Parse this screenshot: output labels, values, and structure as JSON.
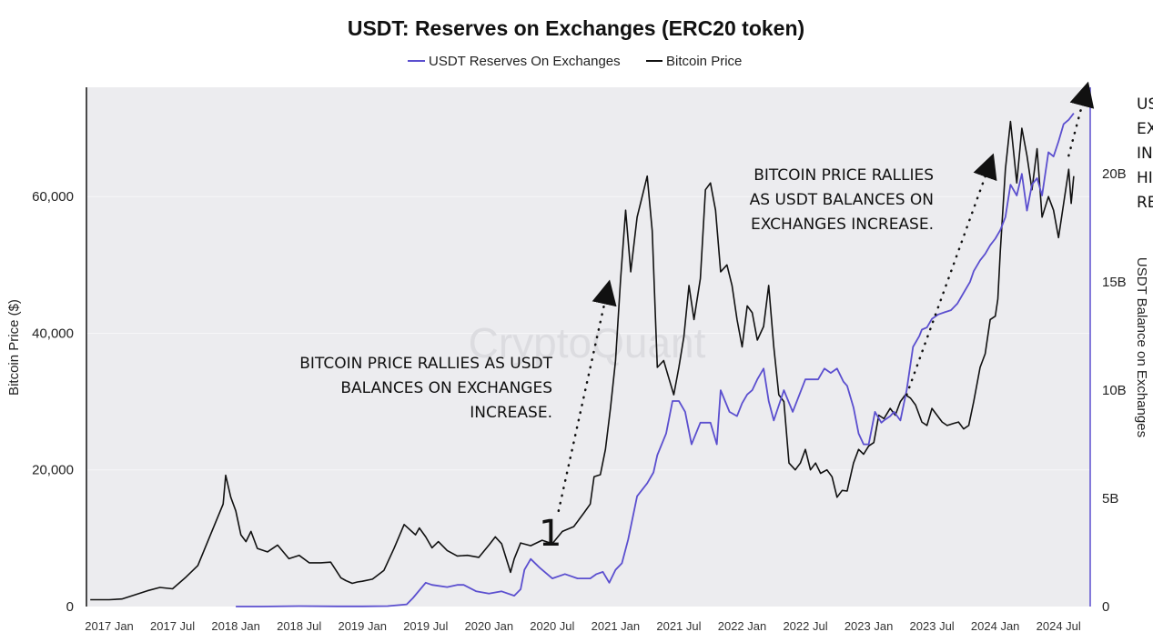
{
  "chart_data": {
    "type": "line",
    "title": "USDT: Reserves on Exchanges (ERC20 token)",
    "watermark": "CryptoQuant",
    "legend": {
      "position": "top-center",
      "entries": [
        {
          "name": "USDT Reserves On Exchanges",
          "color": "#5b4fcf"
        },
        {
          "name": "Bitcoin Price",
          "color": "#111111"
        }
      ]
    },
    "ylabel_left": "Bitcoin Price ($)",
    "ylabel_right": "USDT Balance on Exchanges",
    "ylim_left": [
      0,
      76000
    ],
    "ylim_right": [
      0,
      24000000000
    ],
    "left_ticks": [
      {
        "value": 0,
        "label": "0"
      },
      {
        "value": 20000,
        "label": "20,000"
      },
      {
        "value": 40000,
        "label": "40,000"
      },
      {
        "value": 60000,
        "label": "60,000"
      }
    ],
    "right_ticks": [
      {
        "value": 0,
        "label": "0"
      },
      {
        "value": 5000000000,
        "label": "5B"
      },
      {
        "value": 10000000000,
        "label": "10B"
      },
      {
        "value": 15000000000,
        "label": "15B"
      },
      {
        "value": 20000000000,
        "label": "20B"
      }
    ],
    "x_ticks": [
      {
        "t": 0,
        "label": "2017 Jan"
      },
      {
        "t": 0.5,
        "label": "2017 Jul"
      },
      {
        "t": 1,
        "label": "2018 Jan"
      },
      {
        "t": 1.5,
        "label": "2018 Jul"
      },
      {
        "t": 2,
        "label": "2019 Jan"
      },
      {
        "t": 2.5,
        "label": "2019 Jul"
      },
      {
        "t": 3,
        "label": "2020 Jan"
      },
      {
        "t": 3.5,
        "label": "2020 Jul"
      },
      {
        "t": 4,
        "label": "2021 Jan"
      },
      {
        "t": 4.5,
        "label": "2021 Jul"
      },
      {
        "t": 5,
        "label": "2022 Jan"
      },
      {
        "t": 5.5,
        "label": "2022 Jul"
      },
      {
        "t": 6,
        "label": "2023 Jan"
      },
      {
        "t": 6.5,
        "label": "2023 Jul"
      },
      {
        "t": 7,
        "label": "2024 Jan"
      },
      {
        "t": 7.5,
        "label": "2024 Jul"
      }
    ],
    "xlim": [
      -0.18,
      7.75
    ],
    "series": [
      {
        "name": "Bitcoin Price",
        "axis": "left",
        "color": "#111111",
        "t": [
          -0.15,
          0,
          0.1,
          0.2,
          0.3,
          0.4,
          0.5,
          0.6,
          0.7,
          0.8,
          0.9,
          0.92,
          0.96,
          1.0,
          1.04,
          1.08,
          1.12,
          1.17,
          1.25,
          1.33,
          1.42,
          1.5,
          1.58,
          1.67,
          1.75,
          1.83,
          1.87,
          1.92,
          1.96,
          2.0,
          2.08,
          2.17,
          2.25,
          2.33,
          2.42,
          2.45,
          2.5,
          2.55,
          2.6,
          2.67,
          2.75,
          2.83,
          2.92,
          3.0,
          3.05,
          3.1,
          3.17,
          3.2,
          3.25,
          3.33,
          3.42,
          3.5,
          3.58,
          3.67,
          3.75,
          3.8,
          3.83,
          3.88,
          3.92,
          3.96,
          4.0,
          4.04,
          4.08,
          4.12,
          4.17,
          4.25,
          4.29,
          4.33,
          4.38,
          4.42,
          4.46,
          4.5,
          4.54,
          4.58,
          4.62,
          4.67,
          4.71,
          4.75,
          4.79,
          4.83,
          4.88,
          4.92,
          4.96,
          5.0,
          5.04,
          5.08,
          5.12,
          5.17,
          5.21,
          5.25,
          5.29,
          5.33,
          5.37,
          5.42,
          5.46,
          5.5,
          5.54,
          5.58,
          5.62,
          5.67,
          5.71,
          5.75,
          5.79,
          5.83,
          5.88,
          5.92,
          5.96,
          6.0,
          6.04,
          6.08,
          6.12,
          6.17,
          6.21,
          6.25,
          6.29,
          6.33,
          6.37,
          6.42,
          6.46,
          6.5,
          6.54,
          6.58,
          6.62,
          6.67,
          6.71,
          6.75,
          6.79,
          6.83,
          6.88,
          6.92,
          6.96,
          7.0,
          7.02,
          7.04,
          7.08,
          7.12,
          7.17,
          7.21,
          7.25,
          7.29,
          7.33,
          7.37,
          7.42,
          7.46,
          7.5,
          7.54,
          7.58,
          7.6,
          7.62
        ],
        "values": [
          1000,
          1000,
          1100,
          1700,
          2300,
          2800,
          2600,
          4200,
          6000,
          10500,
          15000,
          19200,
          16000,
          14000,
          10500,
          9500,
          11000,
          8500,
          8000,
          9000,
          7000,
          7500,
          6400,
          6400,
          6500,
          4200,
          3800,
          3400,
          3600,
          3700,
          4000,
          5300,
          8500,
          12000,
          10500,
          11500,
          10200,
          8600,
          9500,
          8200,
          7400,
          7500,
          7200,
          9000,
          10200,
          9200,
          5000,
          7000,
          9300,
          8900,
          9700,
          9200,
          11000,
          11700,
          13700,
          15000,
          19000,
          19300,
          23000,
          29000,
          36000,
          48000,
          58000,
          49000,
          57000,
          63000,
          55000,
          35000,
          36000,
          33500,
          31000,
          35000,
          39500,
          47000,
          42000,
          48000,
          61000,
          62000,
          58000,
          49000,
          50000,
          47000,
          42000,
          38000,
          44000,
          43000,
          39000,
          41000,
          47000,
          38000,
          31000,
          30000,
          21000,
          20000,
          21000,
          23000,
          20000,
          21000,
          19500,
          20000,
          19000,
          16000,
          17000,
          16900,
          21000,
          23000,
          22300,
          23500,
          24000,
          28000,
          27500,
          29000,
          28000,
          30000,
          31000,
          30500,
          29500,
          27000,
          26500,
          29000,
          28000,
          27000,
          26500,
          26800,
          27000,
          26000,
          26500,
          30000,
          35000,
          37000,
          42000,
          42500,
          45000,
          52000,
          64000,
          71000,
          62000,
          70000,
          66000,
          61000,
          67000,
          57000,
          60000,
          58000,
          54000,
          59000,
          64000,
          59000,
          63000
        ]
      },
      {
        "name": "USDT Reserves On Exchanges",
        "axis": "right",
        "color": "#5b4fcf",
        "t": [
          1.0,
          1.2,
          1.5,
          1.8,
          2.0,
          2.2,
          2.35,
          2.4,
          2.5,
          2.55,
          2.67,
          2.75,
          2.8,
          2.9,
          3.0,
          3.1,
          3.2,
          3.25,
          3.28,
          3.33,
          3.4,
          3.5,
          3.6,
          3.7,
          3.8,
          3.85,
          3.9,
          3.95,
          4.0,
          4.05,
          4.1,
          4.17,
          4.25,
          4.3,
          4.33,
          4.4,
          4.45,
          4.5,
          4.55,
          4.6,
          4.67,
          4.75,
          4.8,
          4.83,
          4.9,
          4.96,
          5.0,
          5.04,
          5.08,
          5.12,
          5.17,
          5.21,
          5.25,
          5.33,
          5.4,
          5.5,
          5.6,
          5.65,
          5.7,
          5.75,
          5.8,
          5.83,
          5.88,
          5.92,
          5.96,
          6.0,
          6.05,
          6.1,
          6.12,
          6.17,
          6.2,
          6.25,
          6.3,
          6.35,
          6.4,
          6.42,
          6.46,
          6.5,
          6.55,
          6.6,
          6.65,
          6.7,
          6.75,
          6.8,
          6.83,
          6.88,
          6.92,
          6.96,
          7.0,
          7.04,
          7.08,
          7.12,
          7.17,
          7.21,
          7.25,
          7.29,
          7.33,
          7.37,
          7.42,
          7.46,
          7.5,
          7.54,
          7.58,
          7.62
        ],
        "values": [
          0,
          0,
          20000000,
          10000000,
          10000000,
          20000000,
          100000000,
          400000000,
          1100000000,
          1000000000,
          900000000,
          1000000000,
          1000000000,
          700000000,
          600000000,
          700000000,
          500000000,
          800000000,
          1700000000,
          2200000000,
          1800000000,
          1300000000,
          1500000000,
          1300000000,
          1300000000,
          1500000000,
          1600000000,
          1100000000,
          1700000000,
          2000000000,
          3100000000,
          5100000000,
          5700000000,
          6200000000,
          7000000000,
          8000000000,
          9500000000,
          9500000000,
          9000000000,
          7500000000,
          8500000000,
          8500000000,
          7500000000,
          10000000000,
          9000000000,
          8800000000,
          9400000000,
          9800000000,
          10000000000,
          10500000000,
          11000000000,
          9500000000,
          8600000000,
          10000000000,
          9000000000,
          10500000000,
          10500000000,
          11000000000,
          10800000000,
          11000000000,
          10400000000,
          10200000000,
          9200000000,
          8000000000,
          7500000000,
          7500000000,
          9000000000,
          8500000000,
          8600000000,
          8800000000,
          9000000000,
          8600000000,
          10000000000,
          12000000000,
          12500000000,
          12800000000,
          12900000000,
          13300000000,
          13500000000,
          13600000000,
          13700000000,
          14000000000,
          14500000000,
          15000000000,
          15500000000,
          16000000000,
          16300000000,
          16700000000,
          17000000000,
          17400000000,
          18000000000,
          19500000000,
          19000000000,
          20000000000,
          18300000000,
          19500000000,
          19800000000,
          19000000000,
          21000000000,
          20800000000,
          21500000000,
          22300000000,
          22500000000,
          22800000000
        ]
      }
    ],
    "annotations": [
      {
        "id": "a1",
        "lines": [
          "BITCOIN PRICE RALLIES AS USDT",
          "BALANCES ON EXCHANGES",
          "INCREASE."
        ],
        "align": "right"
      },
      {
        "id": "a2",
        "lines": [
          "BITCOIN PRICE RALLIES",
          "AS USDT BALANCES ON",
          "EXCHANGES INCREASE."
        ],
        "align": "right"
      },
      {
        "id": "a3",
        "lines": [
          "US",
          "EX",
          "IN",
          "HI",
          "RE"
        ],
        "align": "left"
      },
      {
        "id": "m1",
        "lines": [
          "1"
        ],
        "align": "left"
      }
    ],
    "arrows": [
      {
        "from": [
          3.55,
          14000
        ],
        "to": [
          3.95,
          47500
        ]
      },
      {
        "from": [
          6.3,
          31000
        ],
        "to": [
          6.98,
          66000
        ]
      },
      {
        "from": [
          7.58,
          66000
        ],
        "to": [
          7.73,
          76500
        ]
      }
    ]
  }
}
